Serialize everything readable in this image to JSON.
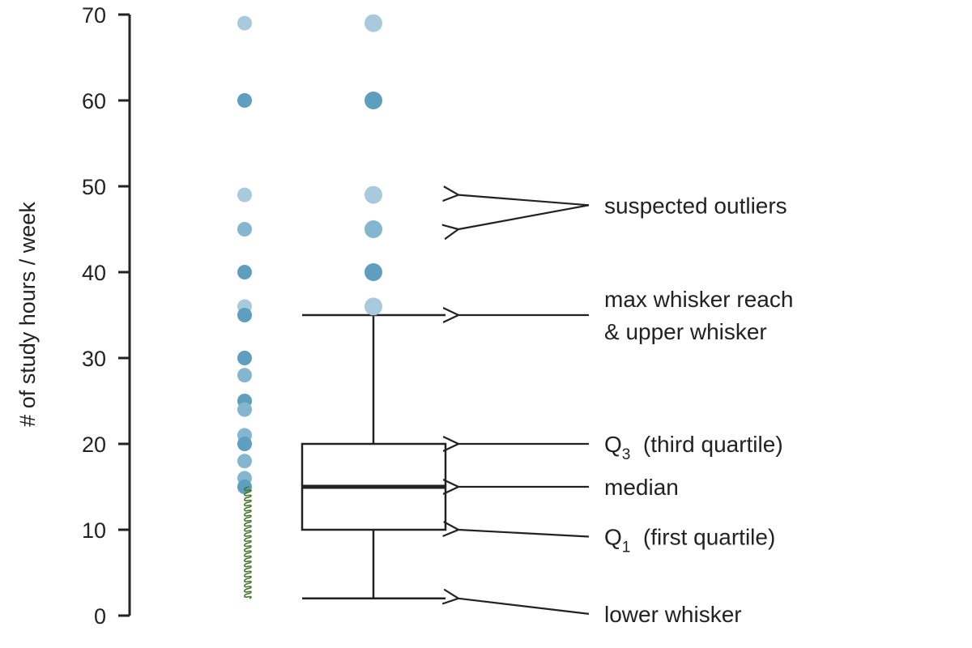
{
  "chart_data": {
    "type": "box",
    "ylabel": "# of study hours / week",
    "ylim": [
      0,
      70
    ],
    "yticks": [
      0,
      10,
      20,
      30,
      40,
      50,
      60,
      70
    ],
    "dot_strip": {
      "dots": [
        {
          "y": 69,
          "count": 1
        },
        {
          "y": 60,
          "count": 3
        },
        {
          "y": 49,
          "count": 1
        },
        {
          "y": 45,
          "count": 2
        },
        {
          "y": 40,
          "count": 3
        },
        {
          "y": 36,
          "count": 1
        },
        {
          "y": 35,
          "count": 3
        },
        {
          "y": 30,
          "count": 3
        },
        {
          "y": 28,
          "count": 2
        },
        {
          "y": 25,
          "count": 4
        },
        {
          "y": 24,
          "count": 2
        },
        {
          "y": 21,
          "count": 2
        },
        {
          "y": 20,
          "count": 3
        },
        {
          "y": 18,
          "count": 2
        },
        {
          "y": 16,
          "count": 2
        },
        {
          "y": 15,
          "count": 3
        }
      ],
      "below_15_range": [
        2,
        15
      ]
    },
    "box": {
      "lower_whisker": 2,
      "q1": 10,
      "median": 15,
      "q3": 20,
      "upper_whisker": 35
    },
    "outliers": [
      {
        "y": 36,
        "count": 1
      },
      {
        "y": 40,
        "count": 3
      },
      {
        "y": 45,
        "count": 2
      },
      {
        "y": 49,
        "count": 1
      },
      {
        "y": 60,
        "count": 3
      },
      {
        "y": 69,
        "count": 1
      }
    ],
    "annotations": [
      {
        "key": "outliers",
        "lines": [
          "suspected outliers"
        ],
        "text_y": 47.8,
        "arrows_to": [
          49,
          45
        ]
      },
      {
        "key": "max_whisker",
        "lines": [
          "max whisker reach",
          "& upper whisker"
        ],
        "text_y": 35,
        "arrows_to": [
          35
        ]
      },
      {
        "key": "q3",
        "main": "Q",
        "sub": "3",
        "rest": "  (third quartile)",
        "text_y": 20,
        "arrows_to": [
          20
        ]
      },
      {
        "key": "median",
        "lines": [
          "median"
        ],
        "text_y": 15,
        "arrows_to": [
          15
        ]
      },
      {
        "key": "q1",
        "main": "Q",
        "sub": "1",
        "rest": "  (first quartile)",
        "text_y": 9.2,
        "arrows_to": [
          10
        ]
      },
      {
        "key": "lower_whisker",
        "lines": [
          "lower whisker"
        ],
        "text_y": 0.2,
        "arrows_to": [
          2
        ]
      }
    ],
    "colors": {
      "dot_light": "#a9c9dc",
      "dot_mid": "#84b6cf",
      "dot_dark": "#5e9ebf",
      "axis": "#222222",
      "squiggle": "#4a7a32"
    }
  }
}
